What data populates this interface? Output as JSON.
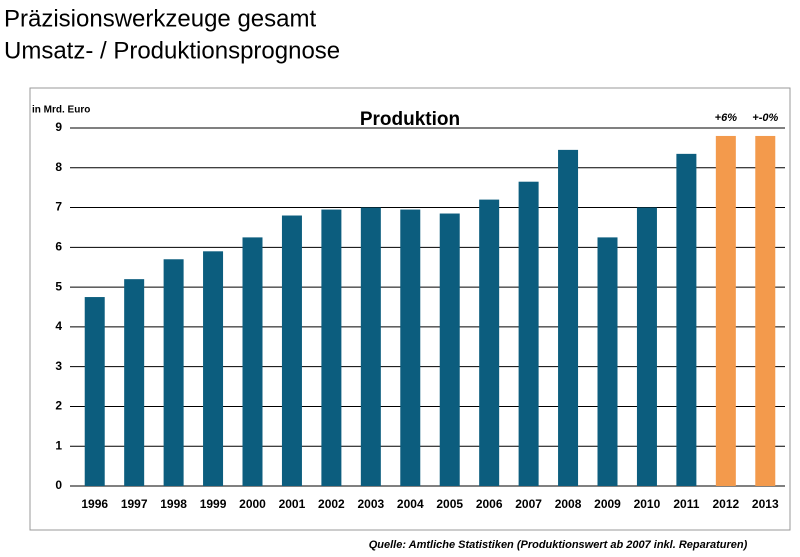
{
  "header": {
    "title": "Präzisionswerkzeuge gesamt",
    "subtitle": "Umsatz- / Produktionsprognose"
  },
  "chart_data": {
    "type": "bar",
    "title": "Produktion",
    "y_label": "in Mrd. Euro",
    "categories": [
      "1996",
      "1997",
      "1998",
      "1999",
      "2000",
      "2001",
      "2002",
      "2003",
      "2004",
      "2005",
      "2006",
      "2007",
      "2008",
      "2009",
      "2010",
      "2011",
      "2012",
      "2013"
    ],
    "values": [
      4.75,
      5.2,
      5.7,
      5.9,
      6.25,
      6.8,
      6.95,
      7.0,
      6.95,
      6.85,
      7.2,
      7.65,
      8.45,
      6.25,
      7.0,
      8.35,
      8.8,
      8.8
    ],
    "colors": [
      "#0c5d7e",
      "#0c5d7e",
      "#0c5d7e",
      "#0c5d7e",
      "#0c5d7e",
      "#0c5d7e",
      "#0c5d7e",
      "#0c5d7e",
      "#0c5d7e",
      "#0c5d7e",
      "#0c5d7e",
      "#0c5d7e",
      "#0c5d7e",
      "#0c5d7e",
      "#0c5d7e",
      "#0c5d7e",
      "#f39a4c",
      "#f39a4c"
    ],
    "annotations": [
      "+6%",
      "+-0%"
    ],
    "ylim": [
      0,
      9
    ],
    "yticks": [
      0,
      1,
      2,
      3,
      4,
      5,
      6,
      7,
      8,
      9
    ],
    "grid": true,
    "source": "Quelle: Amtliche Statistiken (Produktionswert ab 2007 inkl. Reparaturen)"
  }
}
